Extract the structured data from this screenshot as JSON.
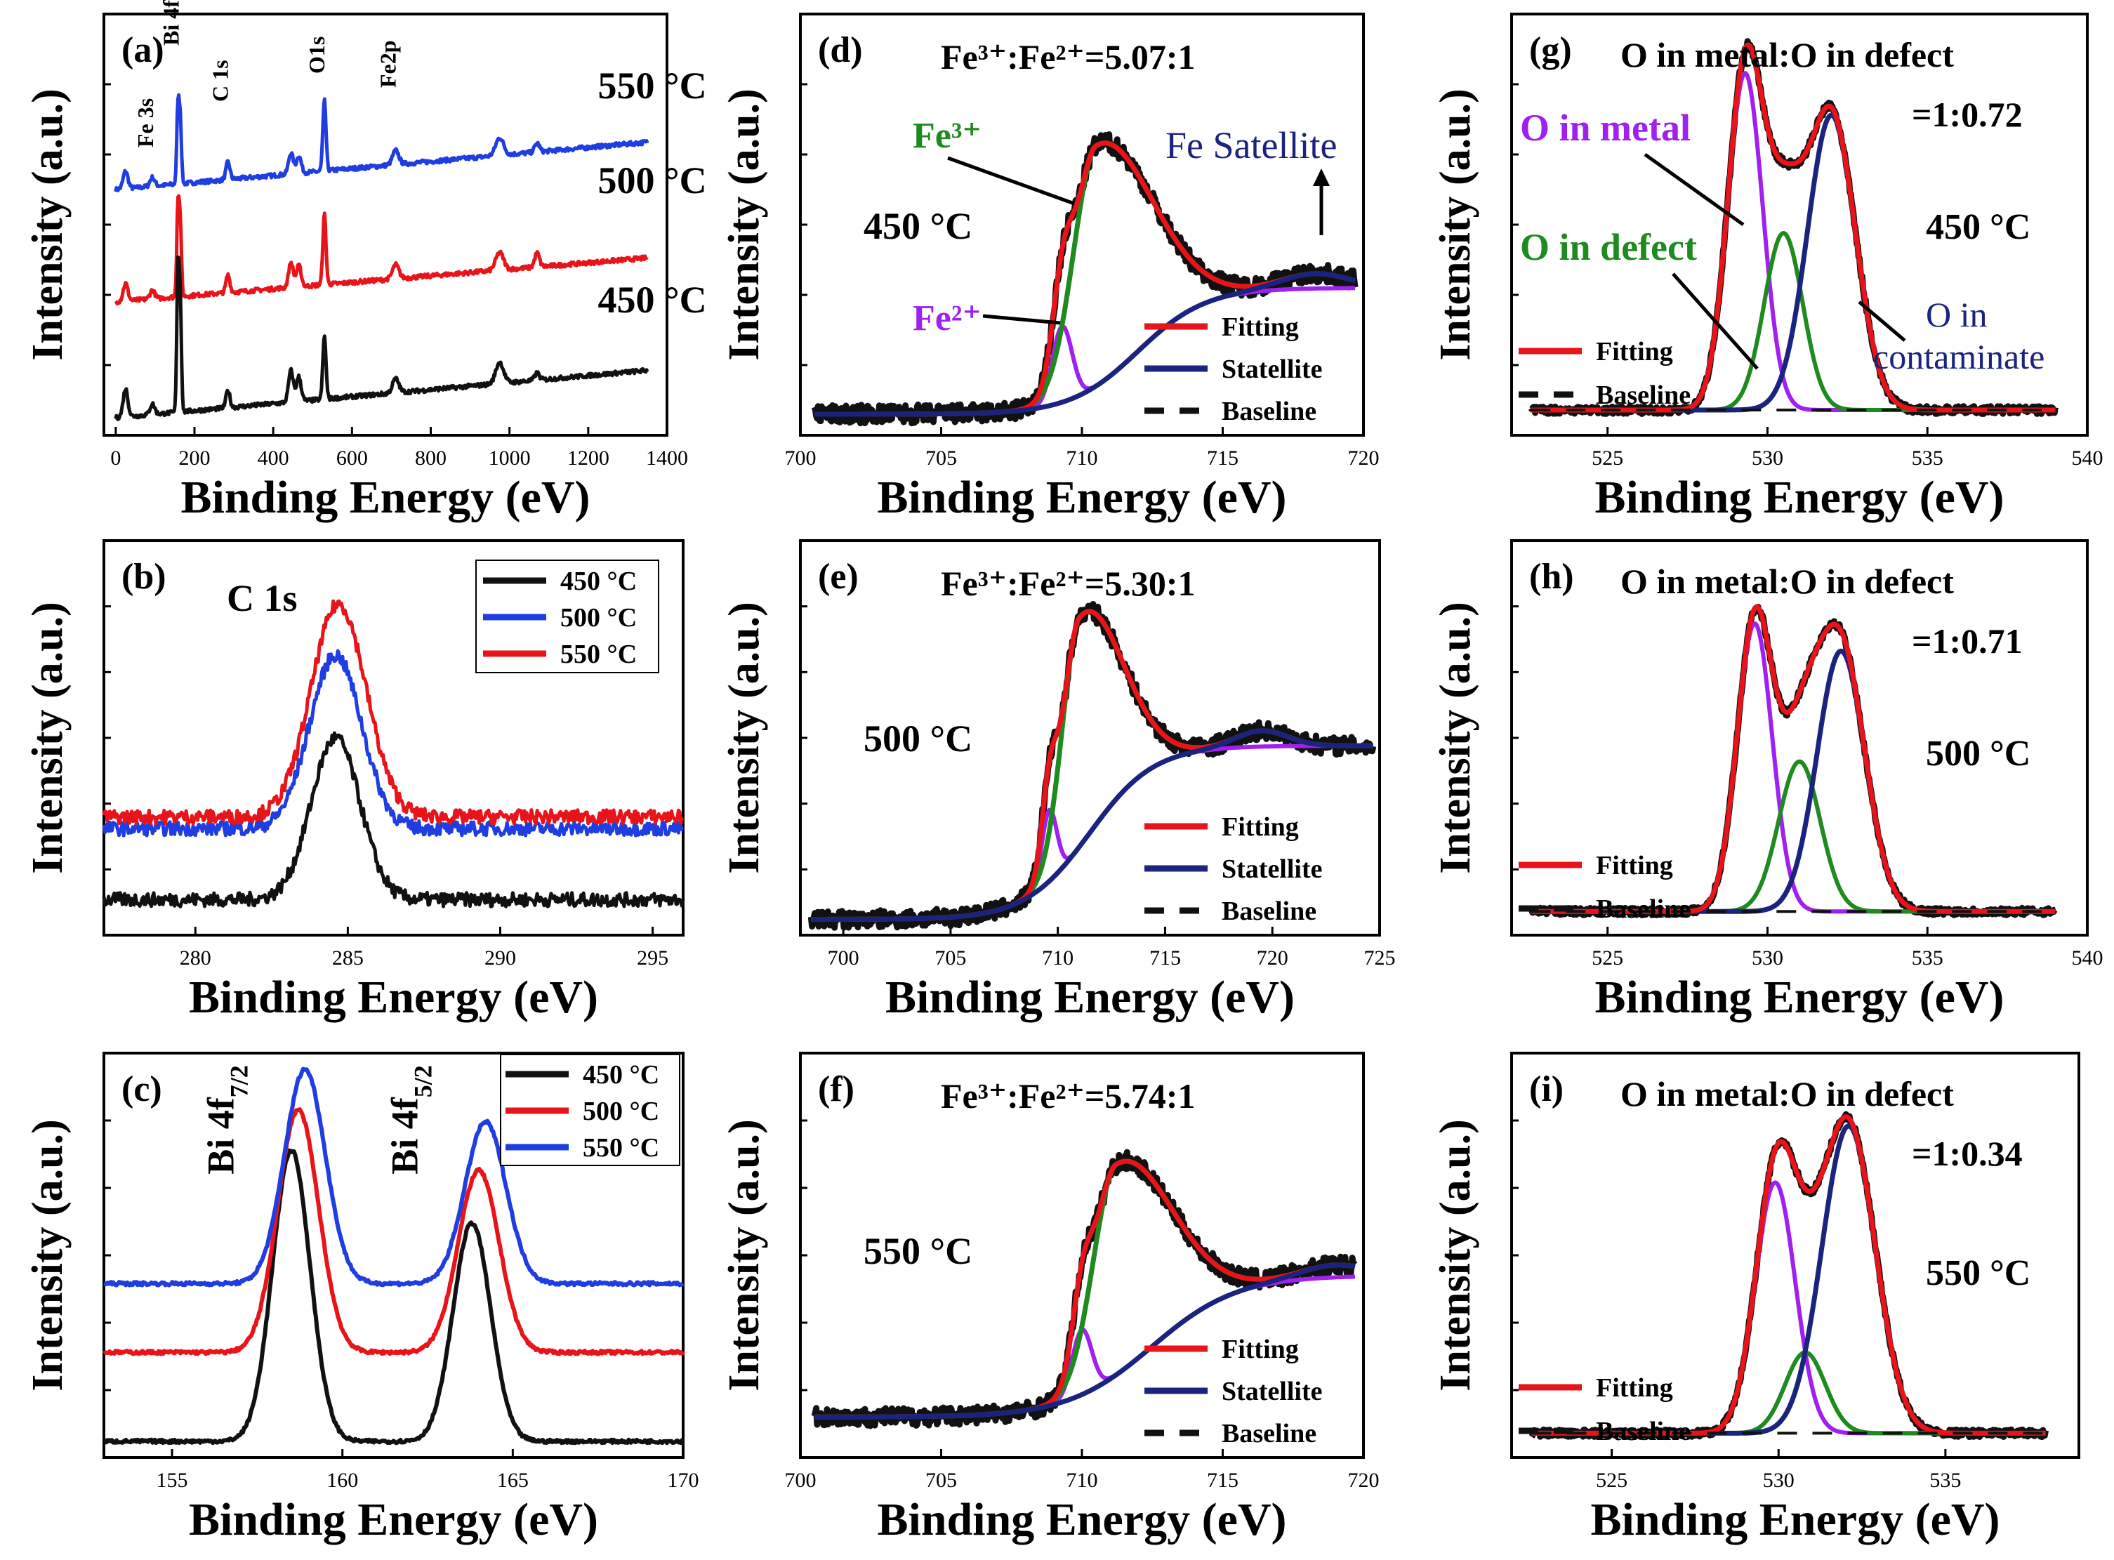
{
  "figure": {
    "description_free": true
  },
  "chart_data": [
    {
      "id": "a",
      "type": "line",
      "panel_label": "(a)",
      "xlabel": "Binding Energy (eV)",
      "ylabel": "Intensity (a.u.)",
      "xlim": [
        -30,
        1400
      ],
      "ylim": [
        0,
        12
      ],
      "xticks": [
        0,
        200,
        400,
        600,
        800,
        1000,
        1200,
        1400
      ],
      "xtick_labels": [
        "0",
        "200",
        "400",
        "600",
        "800",
        "1000",
        "1200",
        "1400"
      ],
      "annotations": [
        {
          "text": "Fe 3s",
          "x": 95,
          "y": 8.2,
          "rot": -90
        },
        {
          "text": "Bi 4f",
          "x": 160,
          "y": 11.1,
          "rot": -90
        },
        {
          "text": "C 1s",
          "x": 285,
          "y": 9.5,
          "rot": -90
        },
        {
          "text": "O1s",
          "x": 530,
          "y": 10.3,
          "rot": -90
        },
        {
          "text": "Fe2p",
          "x": 711,
          "y": 9.9,
          "rot": -90
        }
      ],
      "series": [
        {
          "name": "550 °C",
          "label_text": "550 °C",
          "color": "#1f3de0",
          "base": 7.0,
          "slope": 1.4,
          "peaks": [
            [
              25,
              0.5,
              6
            ],
            [
              93,
              0.25,
              6
            ],
            [
              158,
              2.2,
              3
            ],
            [
              164,
              1.8,
              3
            ],
            [
              285,
              0.5,
              5
            ],
            [
              445,
              0.6,
              6
            ],
            [
              465,
              0.5,
              6
            ],
            [
              530,
              2.0,
              4
            ],
            [
              711,
              0.4,
              8
            ],
            [
              975,
              0.5,
              10
            ],
            [
              1070,
              0.25,
              6
            ]
          ],
          "label_pos": [
            1260,
            9.6
          ]
        },
        {
          "name": "500 °C",
          "label_text": "500 °C",
          "color": "#e8141a",
          "base": 3.8,
          "slope": 1.3,
          "peaks": [
            [
              25,
              0.5,
              6
            ],
            [
              93,
              0.25,
              6
            ],
            [
              158,
              2.6,
              3
            ],
            [
              164,
              2.0,
              3
            ],
            [
              285,
              0.5,
              5
            ],
            [
              445,
              0.7,
              6
            ],
            [
              465,
              0.6,
              6
            ],
            [
              530,
              2.0,
              4
            ],
            [
              711,
              0.4,
              8
            ],
            [
              975,
              0.5,
              10
            ],
            [
              1070,
              0.4,
              6
            ]
          ],
          "label_pos": [
            1260,
            6.9
          ]
        },
        {
          "name": "450 °C",
          "label_text": "450 °C",
          "color": "#111111",
          "base": 0.5,
          "slope": 1.4,
          "peaks": [
            [
              25,
              0.8,
              6
            ],
            [
              93,
              0.3,
              6
            ],
            [
              158,
              4.0,
              3
            ],
            [
              164,
              3.0,
              3
            ],
            [
              285,
              0.5,
              5
            ],
            [
              445,
              0.9,
              6
            ],
            [
              465,
              0.7,
              6
            ],
            [
              530,
              1.8,
              4
            ],
            [
              711,
              0.4,
              8
            ],
            [
              975,
              0.6,
              10
            ],
            [
              1070,
              0.2,
              6
            ]
          ],
          "label_pos": [
            1260,
            3.5
          ]
        }
      ]
    },
    {
      "id": "b",
      "type": "line",
      "panel_label": "(b)",
      "title": "C 1s",
      "xlabel": "Binding Energy (eV)",
      "ylabel": "Intensity (a.u.)",
      "xlim": [
        277,
        296
      ],
      "ylim": [
        0,
        10
      ],
      "xticks": [
        280,
        285,
        290,
        295
      ],
      "xtick_labels": [
        "280",
        "285",
        "290",
        "295"
      ],
      "legend": {
        "placement": "top-right",
        "entries": [
          "450 °C",
          "500 °C",
          "550 °C"
        ]
      },
      "series": [
        {
          "name": "450 °C",
          "color": "#111111",
          "base": 0.9,
          "peaks": [
            [
              284.6,
              4.1,
              0.8
            ]
          ]
        },
        {
          "name": "500 °C",
          "color": "#1f3de0",
          "base": 2.7,
          "peaks": [
            [
              284.6,
              4.4,
              0.85
            ]
          ]
        },
        {
          "name": "550 °C",
          "color": "#e8141a",
          "base": 3.0,
          "peaks": [
            [
              284.7,
              5.4,
              0.9
            ]
          ]
        }
      ]
    },
    {
      "id": "c",
      "type": "line",
      "panel_label": "(c)",
      "xlabel": "Binding Energy (eV)",
      "ylabel": "Intensity (a.u.)",
      "xlim": [
        153,
        170
      ],
      "ylim": [
        0,
        10
      ],
      "xticks": [
        155,
        160,
        165,
        170
      ],
      "xtick_labels": [
        "155",
        "160",
        "165",
        "170"
      ],
      "annotations": [
        {
          "text": "Bi 4f",
          "sub": "7/2",
          "x": 156.8,
          "y": 7.0,
          "rot": -90
        },
        {
          "text": "Bi 4f",
          "sub": "5/2",
          "x": 162.2,
          "y": 7.0,
          "rot": -90
        }
      ],
      "legend": {
        "placement": "top-right",
        "entries": [
          "450 °C",
          "500 °C",
          "550 °C"
        ]
      },
      "series": [
        {
          "name": "450 °C",
          "color": "#111111",
          "base": 0.4,
          "peaks": [
            [
              158.5,
              7.2,
              0.55
            ],
            [
              163.8,
              5.4,
              0.55
            ]
          ]
        },
        {
          "name": "500 °C",
          "color": "#e8141a",
          "base": 2.6,
          "peaks": [
            [
              158.7,
              6.0,
              0.6
            ],
            [
              164.0,
              4.5,
              0.6
            ]
          ]
        },
        {
          "name": "550 °C",
          "color": "#1f3de0",
          "base": 4.3,
          "peaks": [
            [
              158.9,
              5.3,
              0.6
            ],
            [
              164.2,
              4.0,
              0.6
            ]
          ]
        }
      ]
    },
    {
      "id": "d",
      "type": "line",
      "panel_label": "(d)",
      "ratio_text": "Fe³⁺:Fe²⁺=5.07:1",
      "temp_text": "450 °C",
      "xlabel": "Binding Energy (eV)",
      "ylabel": "Intensity (a.u.)",
      "xlim": [
        700,
        720
      ],
      "ylim": [
        0,
        10
      ],
      "xticks": [
        700,
        705,
        710,
        715,
        720
      ],
      "xtick_labels": [
        "700",
        "705",
        "710",
        "715",
        "720"
      ],
      "legend": {
        "placement": "bottom-right",
        "entries": [
          "Fitting",
          "Statellite",
          "Baseline"
        ]
      },
      "components": {
        "bg_mid": 712.0,
        "bg_w": 1.2,
        "bg_low": 0.5,
        "bg_high": 3.5,
        "sat_center": 718.3,
        "sat_amp": 0.35,
        "fe3_center": 710.5,
        "fe3_amp": 5.7,
        "fe2_center": 709.3,
        "fe2_amp": 1.8
      },
      "annotations": [
        "Fe³⁺",
        "Fe²⁺",
        "Fe Satellite"
      ]
    },
    {
      "id": "e",
      "type": "line",
      "panel_label": "(e)",
      "ratio_text": "Fe³⁺:Fe²⁺=5.30:1",
      "temp_text": "500 °C",
      "xlabel": "Binding Energy (eV)",
      "ylabel": "Intensity (a.u.)",
      "xlim": [
        698,
        725
      ],
      "ylim": [
        0,
        10
      ],
      "xticks": [
        700,
        705,
        710,
        715,
        720,
        725
      ],
      "xtick_labels": [
        "700",
        "705",
        "710",
        "715",
        "720",
        "725"
      ],
      "legend": {
        "placement": "bottom-right",
        "entries": [
          "Fitting",
          "Statellite",
          "Baseline"
        ]
      },
      "components": {
        "bg_mid": 711.5,
        "bg_w": 1.5,
        "bg_low": 0.4,
        "bg_high": 4.8,
        "sat_center": 719.5,
        "sat_amp": 0.4,
        "fe3_center": 711.0,
        "fe3_amp": 5.8,
        "fe2_center": 709.6,
        "fe2_amp": 1.8
      }
    },
    {
      "id": "f",
      "type": "line",
      "panel_label": "(f)",
      "ratio_text": "Fe³⁺:Fe²⁺=5.74:1",
      "temp_text": "550 °C",
      "xlabel": "Binding Energy (eV)",
      "ylabel": "Intensity (a.u.)",
      "xlim": [
        700,
        720
      ],
      "ylim": [
        0,
        10
      ],
      "xticks": [
        700,
        705,
        710,
        715,
        720
      ],
      "xtick_labels": [
        "700",
        "705",
        "710",
        "715",
        "720"
      ],
      "legend": {
        "placement": "bottom-right",
        "entries": [
          "Fitting",
          "Statellite",
          "Baseline"
        ]
      },
      "components": {
        "bg_mid": 712.5,
        "bg_w": 1.5,
        "bg_low": 1.0,
        "bg_high": 4.5,
        "sat_center": 719.0,
        "sat_amp": 0.3,
        "fe3_center": 711.2,
        "fe3_amp": 5.2,
        "fe2_center": 710.0,
        "fe2_amp": 1.6
      }
    },
    {
      "id": "g",
      "type": "line",
      "panel_label": "(g)",
      "ratio_text": "O in metal:O in defect",
      "ratio_text2": "=1:0.72",
      "temp_text": "450  °C",
      "xlabel": "Binding Energy (eV)",
      "ylabel": "Intensity (a.u.)",
      "xlim": [
        522,
        540
      ],
      "ylim": [
        0,
        10
      ],
      "xticks": [
        525,
        530,
        535,
        540
      ],
      "xtick_labels": [
        "525",
        "530",
        "535",
        "540"
      ],
      "legend": {
        "placement": "bottom-left",
        "entries": [
          "Fitting",
          "Baseline"
        ]
      },
      "components": {
        "base": 0.6,
        "metal": [
          529.3,
          8.0,
          0.55
        ],
        "defect": [
          530.5,
          4.2,
          0.6
        ],
        "contam": [
          532.0,
          7.0,
          0.75
        ]
      },
      "annotations": [
        "O in metal",
        "O in defect",
        "O in",
        "contaminate"
      ]
    },
    {
      "id": "h",
      "type": "line",
      "panel_label": "(h)",
      "ratio_text": "O in metal:O in defect",
      "ratio_text2": "=1:0.71",
      "temp_text": "500 °C",
      "xlabel": "Binding Energy (eV)",
      "ylabel": "Intensity (a.u.)",
      "xlim": [
        522,
        540
      ],
      "ylim": [
        0,
        10
      ],
      "xticks": [
        525,
        530,
        535,
        540
      ],
      "xtick_labels": [
        "525",
        "530",
        "535",
        "540"
      ],
      "legend": {
        "placement": "bottom-left",
        "entries": [
          "Fitting",
          "Baseline"
        ]
      },
      "components": {
        "base": 0.6,
        "metal": [
          529.6,
          7.3,
          0.55
        ],
        "defect": [
          531.0,
          3.8,
          0.65
        ],
        "contam": [
          532.3,
          6.6,
          0.75
        ]
      }
    },
    {
      "id": "i",
      "type": "line",
      "panel_label": "(i)",
      "ratio_text": "O in metal:O in defect",
      "ratio_text2": "=1:0.34",
      "temp_text": "550 °C",
      "xlabel": "Binding Energy (eV)",
      "ylabel": "Intensity (a.u.)",
      "xlim": [
        522,
        539
      ],
      "ylim": [
        0,
        10
      ],
      "xticks": [
        525,
        530,
        535
      ],
      "xtick_labels": [
        "525",
        "530",
        "535"
      ],
      "legend": {
        "placement": "bottom-left",
        "entries": [
          "Fitting",
          "Baseline"
        ]
      },
      "components": {
        "base": 0.6,
        "metal": [
          529.9,
          6.2,
          0.6
        ],
        "defect": [
          530.8,
          2.0,
          0.6
        ],
        "contam": [
          532.1,
          7.6,
          0.8
        ]
      }
    }
  ],
  "colors": {
    "red": "#e8141a",
    "blue": "#1f3de0",
    "black": "#111111",
    "green": "#1f8a1f",
    "purple": "#a020f0",
    "navy": "#1a237e"
  }
}
